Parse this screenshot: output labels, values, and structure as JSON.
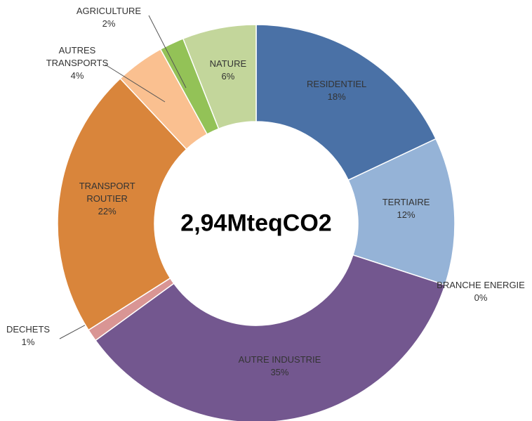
{
  "chart_data": {
    "type": "donut",
    "center_label": "2,94MteqCO2",
    "categories": [
      "RESIDENTIEL",
      "TERTIAIRE",
      "BRANCHE ENERGIE",
      "AUTRE INDUSTRIE",
      "DECHETS",
      "TRANSPORT ROUTIER",
      "AUTRES TRANSPORTS",
      "AGRICULTURE",
      "NATURE"
    ],
    "values": [
      18,
      12,
      0,
      35,
      1,
      22,
      4,
      2,
      6
    ],
    "value_labels": [
      "18%",
      "12%",
      "0%",
      "35%",
      "1%",
      "22%",
      "4%",
      "2%",
      "6%"
    ],
    "colors": [
      "#4a71a6",
      "#95b3d7",
      "#c0504d",
      "#73578f",
      "#d99594",
      "#d9853b",
      "#fac090",
      "#93c257",
      "#c3d69b"
    ]
  }
}
